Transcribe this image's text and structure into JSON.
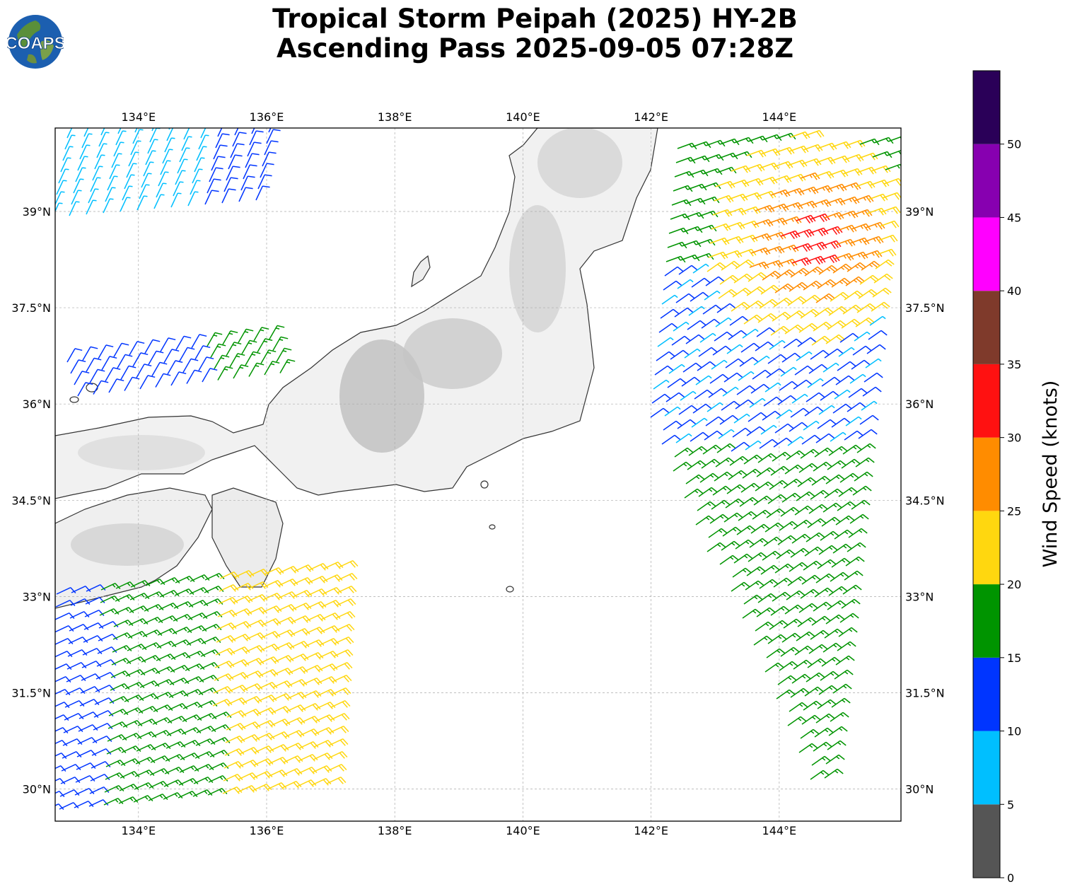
{
  "title": {
    "line1": "Tropical Storm Peipah (2025) HY-2B",
    "line2": "Ascending Pass 2025-09-05 07:28Z"
  },
  "logo": {
    "text": "COAPS"
  },
  "map": {
    "lon_range": [
      132.7,
      145.9
    ],
    "lat_range": [
      29.5,
      40.3
    ],
    "lon_ticks": [
      "134°E",
      "136°E",
      "138°E",
      "140°E",
      "142°E",
      "144°E"
    ],
    "lon_tick_values": [
      134,
      136,
      138,
      140,
      142,
      144
    ],
    "lat_ticks": [
      "30°N",
      "31.5°N",
      "33°N",
      "34.5°N",
      "36°N",
      "37.5°N",
      "39°N"
    ],
    "lat_tick_values": [
      30,
      31.5,
      33,
      34.5,
      36,
      37.5,
      39
    ],
    "grid": true,
    "basemap": "grayscale terrain with coastlines",
    "icon": "wind-barb-symbols"
  },
  "colorbar": {
    "label": "Wind Speed (knots)",
    "ticks": [
      "0",
      "5",
      "10",
      "15",
      "20",
      "25",
      "30",
      "35",
      "40",
      "45",
      "50"
    ],
    "bins": [
      {
        "from": 0,
        "to": 5,
        "color": "#555555"
      },
      {
        "from": 5,
        "to": 10,
        "color": "#00bfff"
      },
      {
        "from": 10,
        "to": 15,
        "color": "#0035ff"
      },
      {
        "from": 15,
        "to": 20,
        "color": "#009400"
      },
      {
        "from": 20,
        "to": 25,
        "color": "#ffd70f"
      },
      {
        "from": 25,
        "to": 30,
        "color": "#ff8c00"
      },
      {
        "from": 30,
        "to": 35,
        "color": "#ff1111"
      },
      {
        "from": 35,
        "to": 40,
        "color": "#7f3a2b"
      },
      {
        "from": 40,
        "to": 45,
        "color": "#ff00ff"
      },
      {
        "from": 45,
        "to": 50,
        "color": "#8700b0"
      },
      {
        "from": 50,
        "to": 55,
        "color": "#2a0058"
      }
    ]
  }
}
